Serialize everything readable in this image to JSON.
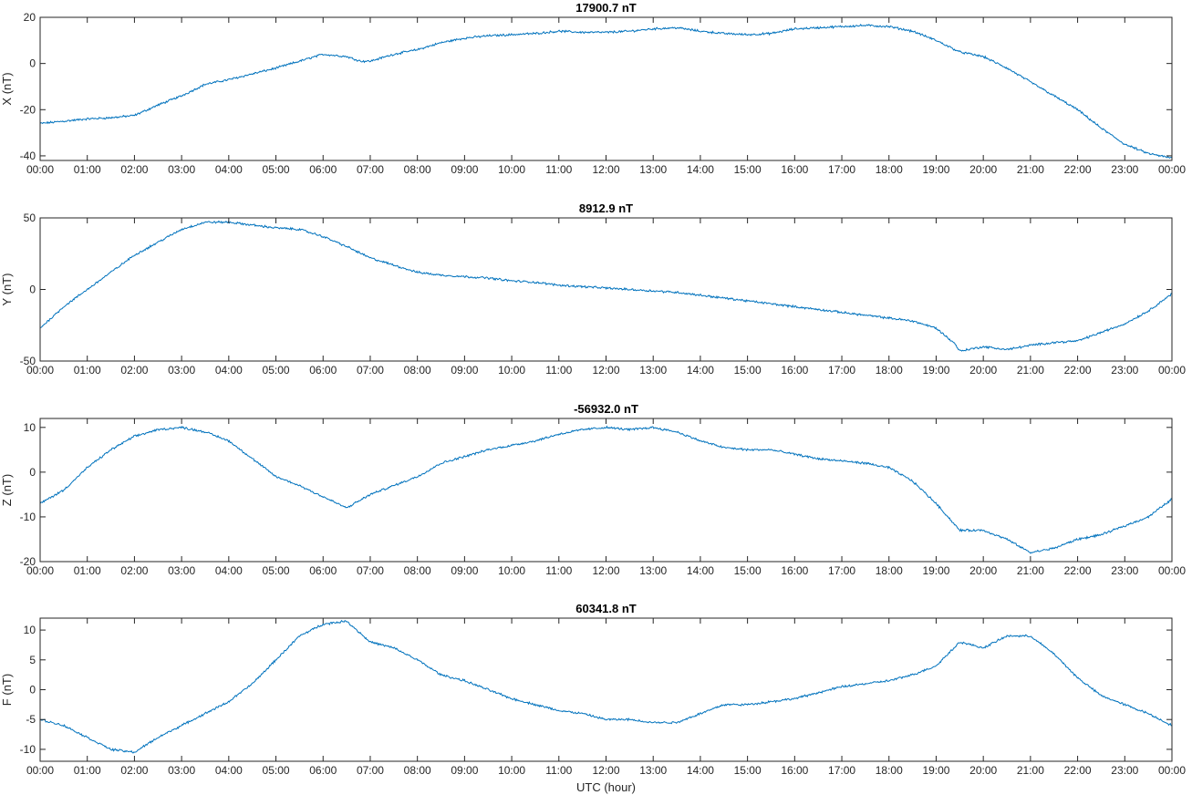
{
  "chart_data": {
    "type": "line",
    "xlabel": "UTC (hour)",
    "x_ticks": [
      "00:00",
      "01:00",
      "02:00",
      "03:00",
      "04:00",
      "05:00",
      "06:00",
      "07:00",
      "08:00",
      "09:00",
      "10:00",
      "11:00",
      "12:00",
      "13:00",
      "14:00",
      "15:00",
      "16:00",
      "17:00",
      "18:00",
      "19:00",
      "20:00",
      "21:00",
      "22:00",
      "23:00",
      "00:00"
    ],
    "x_range_hours": [
      0,
      24
    ],
    "grid": false,
    "line_color": "#0072BD",
    "panels": [
      {
        "title": "17900.7 nT",
        "ylabel": "X (nT)",
        "ylim": [
          -42,
          20
        ],
        "yticks": [
          -40,
          -20,
          0,
          20
        ],
        "series": {
          "x": [
            0,
            0.5,
            1,
            1.5,
            2,
            2.5,
            3,
            3.5,
            4,
            4.5,
            5,
            5.5,
            6,
            6.5,
            6.8,
            7,
            7.5,
            8,
            8.5,
            9,
            9.5,
            10,
            10.5,
            11,
            11.5,
            12,
            12.5,
            13,
            13.5,
            14,
            14.5,
            15,
            15.5,
            16,
            16.5,
            17,
            17.5,
            18,
            18.5,
            19,
            19.5,
            20,
            20.5,
            21,
            21.5,
            22,
            22.5,
            23,
            23.5,
            24
          ],
          "y": [
            -26,
            -25,
            -24,
            -23.5,
            -22.5,
            -18,
            -14,
            -9,
            -7,
            -4.5,
            -2,
            1,
            4,
            3,
            1,
            1,
            4,
            6,
            9,
            11,
            12,
            12.5,
            13,
            14,
            13.5,
            13.5,
            14,
            15,
            15.5,
            14,
            13,
            12.5,
            13,
            15,
            15.5,
            16,
            16.5,
            16,
            14,
            10,
            5,
            3,
            -2,
            -8,
            -14,
            -20,
            -28,
            -35,
            -39,
            -41
          ]
        }
      },
      {
        "title": "8912.9 nT",
        "ylabel": "Y (nT)",
        "ylim": [
          -50,
          50
        ],
        "yticks": [
          -50,
          0,
          50
        ],
        "series": {
          "x": [
            0,
            0.5,
            1,
            1.5,
            2,
            2.5,
            3,
            3.5,
            4,
            4.5,
            5,
            5.5,
            6,
            6.5,
            7,
            7.5,
            8,
            8.5,
            9,
            9.5,
            10,
            10.5,
            11,
            11.5,
            12,
            12.5,
            13,
            13.5,
            14,
            14.5,
            15,
            15.5,
            16,
            16.5,
            17,
            17.5,
            18,
            18.5,
            19,
            19.4,
            19.5,
            20,
            20.5,
            21,
            21.5,
            22,
            22.5,
            23,
            23.5,
            24
          ],
          "y": [
            -27,
            -12,
            0,
            12,
            24,
            33,
            42,
            47,
            47,
            45,
            43,
            42,
            37,
            30,
            22,
            17,
            12,
            10,
            9,
            8,
            6,
            5,
            3,
            2,
            1,
            0,
            -1,
            -2,
            -4,
            -6,
            -8,
            -10,
            -12,
            -14,
            -16,
            -18,
            -20,
            -22,
            -27,
            -38,
            -43,
            -40,
            -42,
            -39,
            -37,
            -36,
            -30,
            -24,
            -15,
            -3
          ]
        }
      },
      {
        "title": "-56932.0 nT",
        "ylabel": "Z (nT)",
        "ylim": [
          -20,
          12
        ],
        "yticks": [
          -20,
          -10,
          0,
          10
        ],
        "series": {
          "x": [
            0,
            0.5,
            1,
            1.5,
            2,
            2.5,
            3,
            3.5,
            4,
            4.5,
            5,
            5.5,
            6,
            6.5,
            7,
            7.5,
            8,
            8.5,
            9,
            9.5,
            10,
            10.5,
            11,
            11.5,
            12,
            12.5,
            13,
            13.5,
            14,
            14.5,
            15,
            15.5,
            16,
            16.5,
            17,
            17.5,
            18,
            18.5,
            19,
            19.5,
            20,
            20.5,
            21,
            21.5,
            22,
            22.5,
            23,
            23.5,
            24
          ],
          "y": [
            -7,
            -4,
            1,
            5,
            8,
            9.5,
            10,
            9,
            7,
            3,
            -1,
            -3,
            -5.5,
            -8,
            -5,
            -3,
            -1,
            2,
            3.5,
            5,
            6,
            7,
            8.5,
            9.5,
            10,
            9.5,
            10,
            9,
            7,
            5.5,
            5,
            5,
            4,
            3,
            2.5,
            2,
            1,
            -2,
            -7,
            -13,
            -13,
            -15,
            -18,
            -17,
            -15,
            -14,
            -12,
            -10,
            -6
          ]
        }
      },
      {
        "title": "60341.8 nT",
        "ylabel": "F (nT)",
        "ylim": [
          -12,
          12
        ],
        "yticks": [
          -10,
          -5,
          0,
          5,
          10
        ],
        "series": {
          "x": [
            0,
            0.5,
            1,
            1.5,
            2,
            2.5,
            3,
            3.5,
            4,
            4.5,
            5,
            5.5,
            6,
            6.5,
            7,
            7.5,
            8,
            8.5,
            9,
            9.5,
            10,
            10.5,
            11,
            11.5,
            12,
            12.5,
            13,
            13.5,
            14,
            14.5,
            15,
            15.5,
            16,
            16.5,
            17,
            17.5,
            18,
            18.5,
            19,
            19.5,
            20,
            20.5,
            21,
            21.5,
            22,
            22.5,
            23,
            23.5,
            24
          ],
          "y": [
            -5,
            -6,
            -8,
            -10,
            -10.5,
            -8,
            -6,
            -4,
            -2,
            1,
            5,
            9,
            11,
            11.5,
            8,
            7,
            5,
            2.5,
            1.5,
            0,
            -1.5,
            -2.5,
            -3.5,
            -4,
            -5,
            -5,
            -5.5,
            -5.5,
            -4,
            -2.5,
            -2.5,
            -2,
            -1.5,
            -0.5,
            0.5,
            1,
            1.5,
            2.5,
            4,
            8,
            7,
            9,
            9,
            6,
            2,
            -1,
            -2.5,
            -4,
            -6
          ]
        }
      }
    ]
  }
}
